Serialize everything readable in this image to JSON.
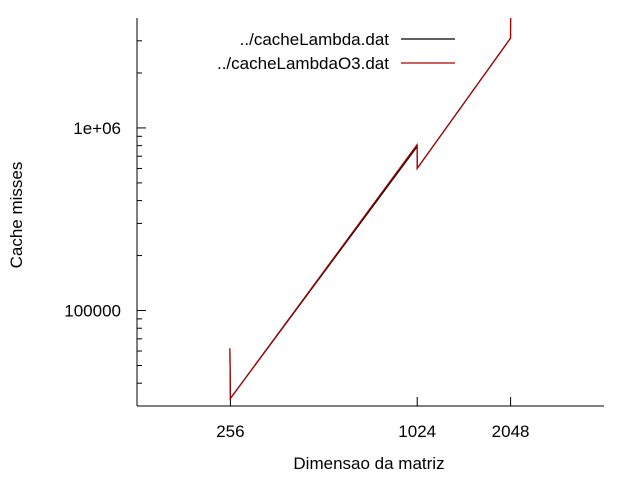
{
  "chart_data": {
    "type": "line",
    "title": "",
    "xlabel": "Dimensao da matriz",
    "ylabel": "Cache misses",
    "x_scale": "log2",
    "y_scale": "log10",
    "xlim": [
      128,
      4096
    ],
    "ylim": [
      30000,
      4000000
    ],
    "x_ticks": [
      {
        "value": 256,
        "label": "256"
      },
      {
        "value": 1024,
        "label": "1024"
      },
      {
        "value": 2048,
        "label": "2048"
      }
    ],
    "y_ticks": [
      {
        "value": 100000,
        "label": "100000"
      },
      {
        "value": 1000000,
        "label": "1e+06"
      }
    ],
    "grid": false,
    "legend_position": "top-right",
    "series": [
      {
        "name": "../cacheLambda.dat",
        "color": "#000000",
        "points": [
          [
            255,
            62000
          ],
          [
            256,
            33000
          ],
          [
            1023,
            790000
          ],
          [
            1024,
            600000
          ],
          [
            2047,
            3100000
          ],
          [
            2048,
            4000000
          ]
        ]
      },
      {
        "name": "../cacheLambdaO3.dat",
        "color": "#aa0000",
        "points": [
          [
            255,
            62000
          ],
          [
            256,
            33000
          ],
          [
            1023,
            810000
          ],
          [
            1024,
            600000
          ],
          [
            2047,
            3100000
          ],
          [
            2048,
            4000000
          ]
        ]
      }
    ]
  }
}
